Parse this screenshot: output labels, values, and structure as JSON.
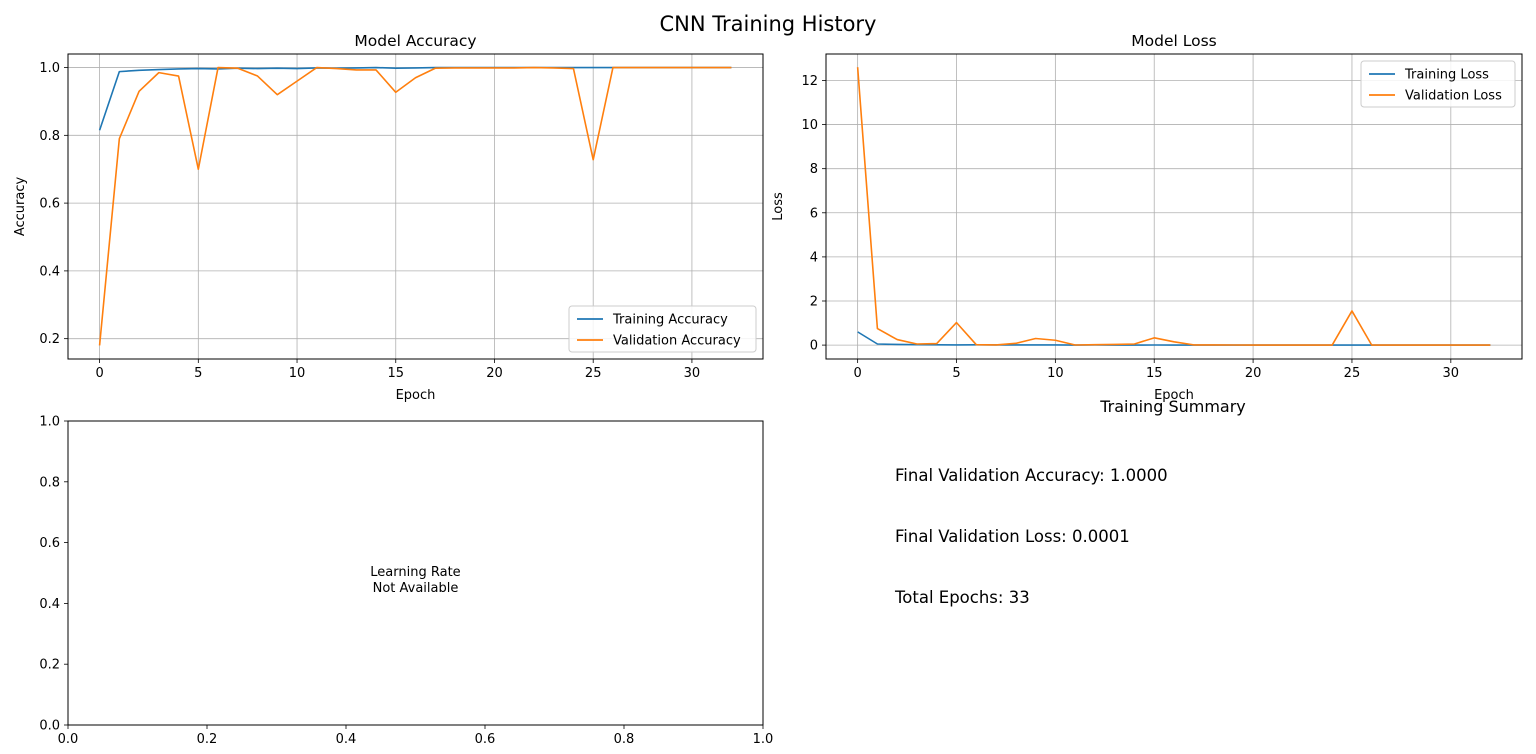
{
  "figure": {
    "title": "CNN Training History"
  },
  "chart_data": [
    {
      "id": "accuracy",
      "type": "line",
      "title": "Model Accuracy",
      "xlabel": "Epoch",
      "ylabel": "Accuracy",
      "xlim": [
        -1.6,
        33.6
      ],
      "ylim": [
        0.14,
        1.04
      ],
      "xticks": [
        0,
        5,
        10,
        15,
        20,
        25,
        30
      ],
      "yticks": [
        0.2,
        0.4,
        0.6,
        0.8,
        1.0
      ],
      "grid": true,
      "legend": "lower-right",
      "x": [
        0,
        1,
        2,
        3,
        4,
        5,
        6,
        7,
        8,
        9,
        10,
        11,
        12,
        13,
        14,
        15,
        16,
        17,
        18,
        19,
        20,
        21,
        22,
        23,
        24,
        25,
        26,
        27,
        28,
        29,
        30,
        31,
        32
      ],
      "series": [
        {
          "name": "Training Accuracy",
          "color": "#1f77b4",
          "values": [
            0.815,
            0.988,
            0.992,
            0.994,
            0.996,
            0.997,
            0.996,
            0.998,
            0.997,
            0.998,
            0.997,
            0.999,
            0.998,
            0.999,
            1.0,
            0.998,
            0.999,
            1.0,
            1.0,
            1.0,
            1.0,
            1.0,
            1.0,
            1.0,
            1.0,
            1.0,
            1.0,
            1.0,
            1.0,
            1.0,
            1.0,
            1.0,
            1.0
          ]
        },
        {
          "name": "Validation Accuracy",
          "color": "#ff7f0e",
          "values": [
            0.18,
            0.79,
            0.93,
            0.985,
            0.975,
            0.7,
            1.0,
            0.998,
            0.975,
            0.92,
            0.96,
            1.0,
            0.997,
            0.993,
            0.993,
            0.927,
            0.97,
            0.998,
            0.999,
            0.999,
            0.999,
            0.999,
            1.0,
            0.999,
            0.997,
            0.728,
            1.0,
            1.0,
            1.0,
            1.0,
            1.0,
            1.0,
            1.0
          ]
        }
      ]
    },
    {
      "id": "loss",
      "type": "line",
      "title": "Model Loss",
      "xlabel": "Epoch",
      "ylabel": "Loss",
      "xlim": [
        -1.6,
        33.6
      ],
      "ylim": [
        -0.63,
        13.2
      ],
      "xticks": [
        0,
        5,
        10,
        15,
        20,
        25,
        30
      ],
      "yticks": [
        0,
        2,
        4,
        6,
        8,
        10,
        12
      ],
      "grid": true,
      "legend": "upper-right",
      "x": [
        0,
        1,
        2,
        3,
        4,
        5,
        6,
        7,
        8,
        9,
        10,
        11,
        12,
        13,
        14,
        15,
        16,
        17,
        18,
        19,
        20,
        21,
        22,
        23,
        24,
        25,
        26,
        27,
        28,
        29,
        30,
        31,
        32
      ],
      "series": [
        {
          "name": "Training Loss",
          "color": "#1f77b4",
          "values": [
            0.6,
            0.05,
            0.03,
            0.02,
            0.015,
            0.01,
            0.012,
            0.008,
            0.009,
            0.007,
            0.008,
            0.004,
            0.005,
            0.004,
            0.003,
            0.005,
            0.004,
            0.002,
            0.002,
            0.002,
            0.002,
            0.002,
            0.001,
            0.002,
            0.002,
            0.002,
            0.001,
            0.001,
            0.001,
            0.001,
            0.001,
            0.001,
            0.001
          ]
        },
        {
          "name": "Validation Loss",
          "color": "#ff7f0e",
          "values": [
            12.6,
            0.75,
            0.25,
            0.05,
            0.07,
            1.02,
            0.02,
            0.01,
            0.08,
            0.3,
            0.22,
            0.005,
            0.02,
            0.03,
            0.05,
            0.33,
            0.15,
            0.01,
            0.01,
            0.005,
            0.004,
            0.003,
            0.002,
            0.002,
            0.002,
            1.55,
            0.0,
            0.0,
            0.0,
            0.0,
            0.0,
            0.0,
            0.0001
          ]
        }
      ]
    },
    {
      "id": "learning-rate",
      "type": "line",
      "title": "",
      "xlim": [
        0,
        1
      ],
      "ylim": [
        0,
        1
      ],
      "xticks": [
        0.0,
        0.2,
        0.4,
        0.6,
        0.8,
        1.0
      ],
      "yticks": [
        0.0,
        0.2,
        0.4,
        0.6,
        0.8,
        1.0
      ],
      "grid": false,
      "series": [],
      "annotation": [
        "Learning Rate",
        "Not Available"
      ]
    }
  ],
  "summary": {
    "title": "Training Summary",
    "lines": [
      "Final Validation Accuracy: 1.0000",
      "Final Validation Loss: 0.0001",
      "Total Epochs: 33"
    ]
  }
}
